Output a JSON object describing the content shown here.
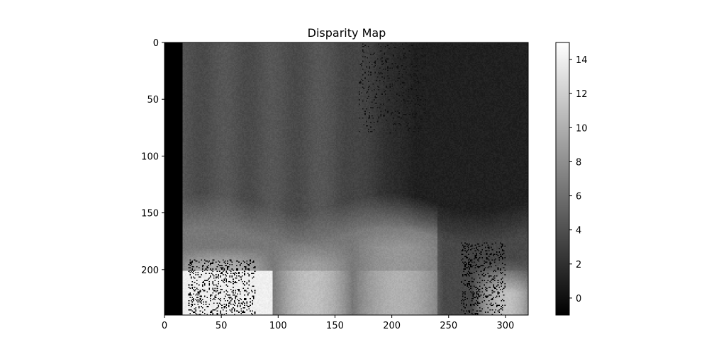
{
  "chart_data": {
    "type": "heatmap",
    "title": "Disparity Map",
    "xlabel": "",
    "ylabel": "",
    "colormap": "gray",
    "image_width": 320,
    "image_height": 240,
    "xlim": [
      0,
      320
    ],
    "ylim": [
      240,
      0
    ],
    "x_ticks": [
      0,
      50,
      100,
      150,
      200,
      250,
      300
    ],
    "y_ticks": [
      0,
      50,
      100,
      150,
      200
    ],
    "colorbar": {
      "range": [
        -1,
        15
      ],
      "ticks": [
        0,
        2,
        4,
        6,
        8,
        10,
        12,
        14
      ],
      "tick_labels": [
        "0",
        "2",
        "4",
        "6",
        "8",
        "10",
        "12",
        "14"
      ]
    },
    "regions_description_values": {
      "left_invalid_band_value": -1,
      "upper_left_background": 4,
      "upper_right_background": 1,
      "mid_band_values": [
        5,
        7
      ],
      "lower_foreground_values": [
        10,
        15
      ]
    }
  }
}
